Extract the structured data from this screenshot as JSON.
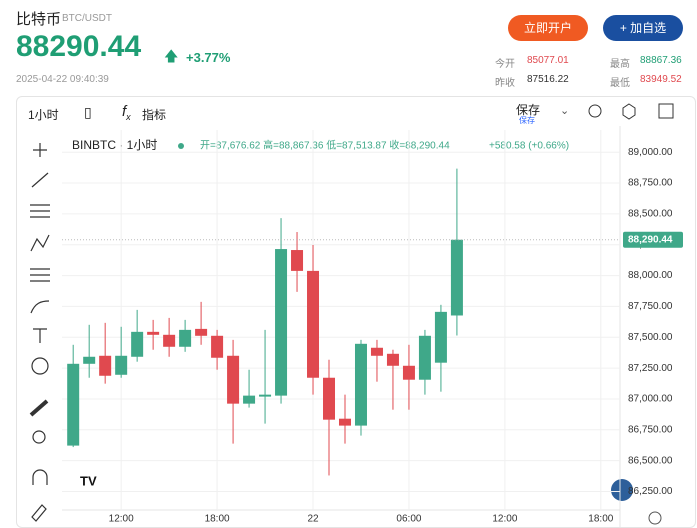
{
  "header": {
    "name": "比特币",
    "pair": "BTC/USDT",
    "price": "88290.44",
    "change": "+3.77%",
    "time": "2025-04-22 09:40:39",
    "buttons": [
      "立即开户",
      "+ 加自选"
    ],
    "stats": [
      {
        "label": "今开",
        "value": "85077.01"
      },
      {
        "label": "最高",
        "value": "88867.36"
      },
      {
        "label": "昨收",
        "value": "87516.22"
      },
      {
        "label": "最低",
        "value": "83949.52"
      }
    ]
  },
  "toolbar": {
    "interval": "1小时",
    "indicators": "指标",
    "save": "保存",
    "save_sub": "保存"
  },
  "chart_data": {
    "type": "candlestick",
    "symbol": "BINBTC · 1小时",
    "ohlc_text": "开=87,676.62 高=88,867.36 低=87,513.87 收=88,290.44",
    "change_text": "+580.58 (+0.66%)",
    "open": [
      86622,
      87285,
      87350,
      87196,
      87342,
      87544,
      87520,
      87423,
      87568,
      87512,
      87350,
      86962,
      87019,
      87027,
      88207,
      88038,
      87172,
      86840,
      86784,
      87415,
      87366,
      87269,
      87156,
      87294,
      87676.62
    ],
    "high": [
      87439,
      87601,
      87617,
      87585,
      87722,
      87641,
      87657,
      87641,
      87787,
      87560,
      87479,
      87237,
      87560,
      88466,
      88353,
      88248,
      87318,
      87035,
      87479,
      87479,
      87399,
      87439,
      87560,
      87763,
      88867.36
    ],
    "low": [
      86610,
      87172,
      87124,
      87172,
      87302,
      87399,
      87342,
      87382,
      87439,
      87237,
      86638,
      86930,
      86800,
      86962,
      87868,
      87035,
      86380,
      86638,
      86703,
      87140,
      86913,
      86913,
      87035,
      87059,
      87513.87
    ],
    "close": [
      87285,
      87342,
      87188,
      87350,
      87544,
      87520,
      87423,
      87560,
      87512,
      87334,
      86962,
      87027,
      87035,
      88215,
      88038,
      87172,
      86832,
      86784,
      87447,
      87350,
      87269,
      87156,
      87512,
      87706,
      88290.44
    ],
    "up_color": "#3fa889",
    "down_color": "#e0494f",
    "last_label": "88,290.44",
    "xlim": [
      -0.7,
      34.2
    ],
    "xticks": [
      {
        "value": 3,
        "label": "12:00"
      },
      {
        "value": 9,
        "label": "18:00"
      },
      {
        "value": 15,
        "label": "22"
      },
      {
        "value": 21,
        "label": "06:00"
      },
      {
        "value": 27,
        "label": "12:00"
      },
      {
        "value": 33,
        "label": "18:00"
      }
    ],
    "ylim": [
      86100,
      89180
    ],
    "yticks": [
      {
        "value": 86250,
        "label": "86,250.00"
      },
      {
        "value": 86500,
        "label": "86,500.00"
      },
      {
        "value": 86750,
        "label": "86,750.00"
      },
      {
        "value": 87000,
        "label": "87,000.00"
      },
      {
        "value": 87250,
        "label": "87,250.00"
      },
      {
        "value": 87500,
        "label": "87,500.00"
      },
      {
        "value": 87750,
        "label": "87,750.00"
      },
      {
        "value": 88000,
        "label": "88,000.00"
      },
      {
        "value": 88250,
        "label": "88,250.00"
      },
      {
        "value": 88500,
        "label": "88,500.00"
      },
      {
        "value": 88750,
        "label": "88,750.00"
      },
      {
        "value": 89000,
        "label": "89,000.00"
      }
    ],
    "grid": true
  }
}
